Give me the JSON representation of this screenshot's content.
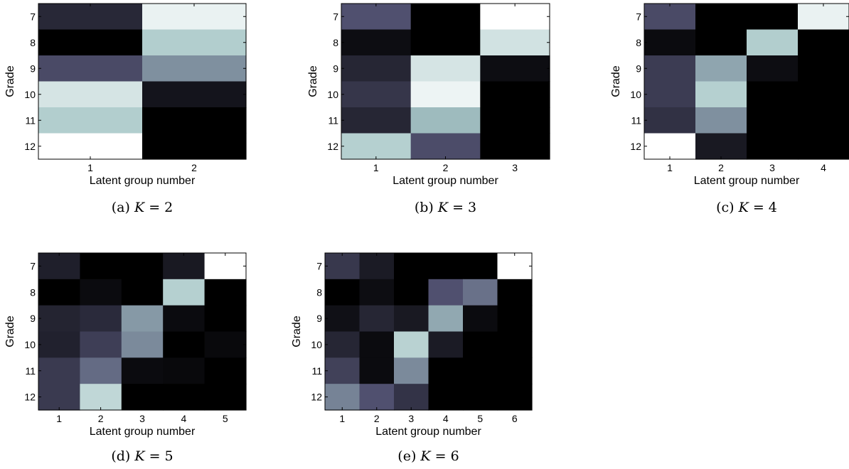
{
  "chart_data": [
    {
      "type": "heatmap",
      "panel_label": "(a)",
      "caption": "K = 2",
      "k": 2,
      "xlabel": "Latent group number",
      "ylabel": "Grade",
      "x_ticks": [
        "1",
        "2"
      ],
      "y_ticks": [
        "7",
        "8",
        "9",
        "10",
        "11",
        "12"
      ],
      "values": [
        [
          0.18,
          0.94
        ],
        [
          0.0,
          0.78
        ],
        [
          0.33,
          0.57
        ],
        [
          0.88,
          0.09
        ],
        [
          0.78,
          0.0
        ],
        [
          1.0,
          0.0
        ]
      ]
    },
    {
      "type": "heatmap",
      "panel_label": "(b)",
      "caption": "K = 3",
      "k": 3,
      "xlabel": "Latent group number",
      "ylabel": "Grade",
      "x_ticks": [
        "1",
        "2",
        "3"
      ],
      "y_ticks": [
        "7",
        "8",
        "9",
        "10",
        "11",
        "12"
      ],
      "values": [
        [
          0.36,
          0.0,
          1.0
        ],
        [
          0.06,
          0.0,
          0.87
        ],
        [
          0.17,
          0.88,
          0.06
        ],
        [
          0.24,
          0.95,
          0.0
        ],
        [
          0.17,
          0.71,
          0.0
        ],
        [
          0.79,
          0.34,
          0.0
        ]
      ]
    },
    {
      "type": "heatmap",
      "panel_label": "(c)",
      "caption": "K = 4",
      "k": 4,
      "xlabel": "Latent group number",
      "ylabel": "Grade",
      "x_ticks": [
        "1",
        "2",
        "3",
        "4"
      ],
      "y_ticks": [
        "7",
        "8",
        "9",
        "10",
        "11",
        "12"
      ],
      "values": [
        [
          0.33,
          0.0,
          0.0,
          0.94
        ],
        [
          0.05,
          0.0,
          0.78,
          0.0
        ],
        [
          0.27,
          0.64,
          0.06,
          0.0
        ],
        [
          0.27,
          0.79,
          0.0,
          0.0
        ],
        [
          0.22,
          0.57,
          0.0,
          0.0
        ],
        [
          1.0,
          0.11,
          0.0,
          0.0
        ]
      ]
    },
    {
      "type": "heatmap",
      "panel_label": "(d)",
      "caption": "K = 5",
      "k": 5,
      "xlabel": "Latent group number",
      "ylabel": "Grade",
      "x_ticks": [
        "1",
        "2",
        "3",
        "4",
        "5"
      ],
      "y_ticks": [
        "7",
        "8",
        "9",
        "10",
        "11",
        "12"
      ],
      "values": [
        [
          0.14,
          0.0,
          0.0,
          0.11,
          1.0
        ],
        [
          0.0,
          0.05,
          0.0,
          0.79,
          0.0
        ],
        [
          0.16,
          0.19,
          0.6,
          0.05,
          0.0
        ],
        [
          0.15,
          0.28,
          0.55,
          0.0,
          0.04
        ],
        [
          0.26,
          0.45,
          0.05,
          0.04,
          0.0
        ],
        [
          0.26,
          0.82,
          0.0,
          0.0,
          0.0
        ]
      ]
    },
    {
      "type": "heatmap",
      "panel_label": "(e)",
      "caption": "K = 6",
      "k": 6,
      "xlabel": "Latent group number",
      "ylabel": "Grade",
      "x_ticks": [
        "1",
        "2",
        "3",
        "4",
        "5",
        "6"
      ],
      "y_ticks": [
        "7",
        "8",
        "9",
        "10",
        "11",
        "12"
      ],
      "values": [
        [
          0.25,
          0.12,
          0.0,
          0.0,
          0.0,
          1.0
        ],
        [
          0.0,
          0.06,
          0.0,
          0.36,
          0.47,
          0.0
        ],
        [
          0.07,
          0.17,
          0.11,
          0.65,
          0.05,
          0.0
        ],
        [
          0.17,
          0.05,
          0.8,
          0.12,
          0.0,
          0.0
        ],
        [
          0.29,
          0.05,
          0.55,
          0.0,
          0.0,
          0.0
        ],
        [
          0.53,
          0.36,
          0.23,
          0.0,
          0.0,
          0.0
        ]
      ]
    }
  ]
}
